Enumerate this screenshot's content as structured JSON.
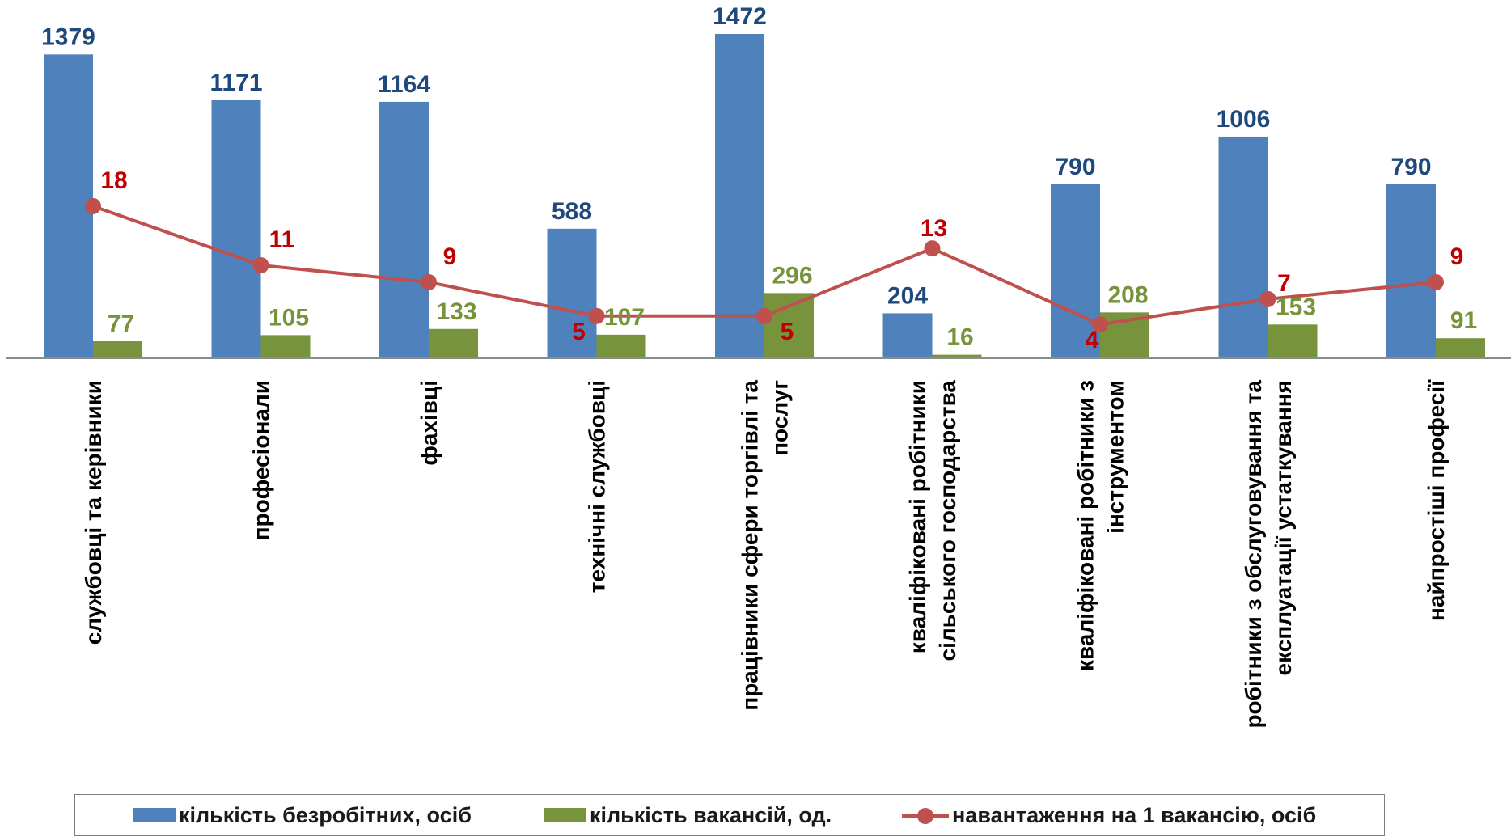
{
  "chart_data": {
    "type": "bar",
    "categories": [
      "службовці та керівники",
      "професіонали",
      "фахівці",
      "технічні службовці",
      "працівники сфери торгівлі та послуг",
      "кваліфіковані робітники сільського господарства",
      "кваліфіковані робітники з інструментом",
      "робітники з обслуговування та експлуатації устаткування",
      "найпростіші професії"
    ],
    "category_lines": [
      [
        "службовці та керівники"
      ],
      [
        "професіонали"
      ],
      [
        "фахівці"
      ],
      [
        "технічні службовці"
      ],
      [
        "працівники сфери торгівлі та",
        "послуг"
      ],
      [
        "кваліфіковані робітники",
        "сільського господарства"
      ],
      [
        "кваліфіковані робітники з",
        "інструментом"
      ],
      [
        "робітники з обслуговування та",
        "експлуатації устаткування"
      ],
      [
        "найпростіші професії"
      ]
    ],
    "series": [
      {
        "name": "кількість безробітних,  осіб",
        "type": "bar",
        "color": "#4f81bd",
        "label_color": "#1f497d",
        "values": [
          1379,
          1171,
          1164,
          588,
          1472,
          204,
          790,
          1006,
          790
        ]
      },
      {
        "name": "кількість вакансій,  од.",
        "type": "bar",
        "color": "#77933c",
        "label_color": "#77933c",
        "values": [
          77,
          105,
          133,
          107,
          296,
          16,
          208,
          153,
          91
        ]
      },
      {
        "name": "навантаження на 1 вакансію, осіб",
        "type": "line",
        "color": "#c0504d",
        "label_color": "#c00000",
        "values": [
          18,
          11,
          9,
          5,
          5,
          13,
          4,
          7,
          9
        ]
      }
    ],
    "bar_axis_range": [
      0,
      1472
    ],
    "line_axis_range": [
      0,
      36
    ],
    "gridlines": false,
    "legend_position": "bottom"
  }
}
